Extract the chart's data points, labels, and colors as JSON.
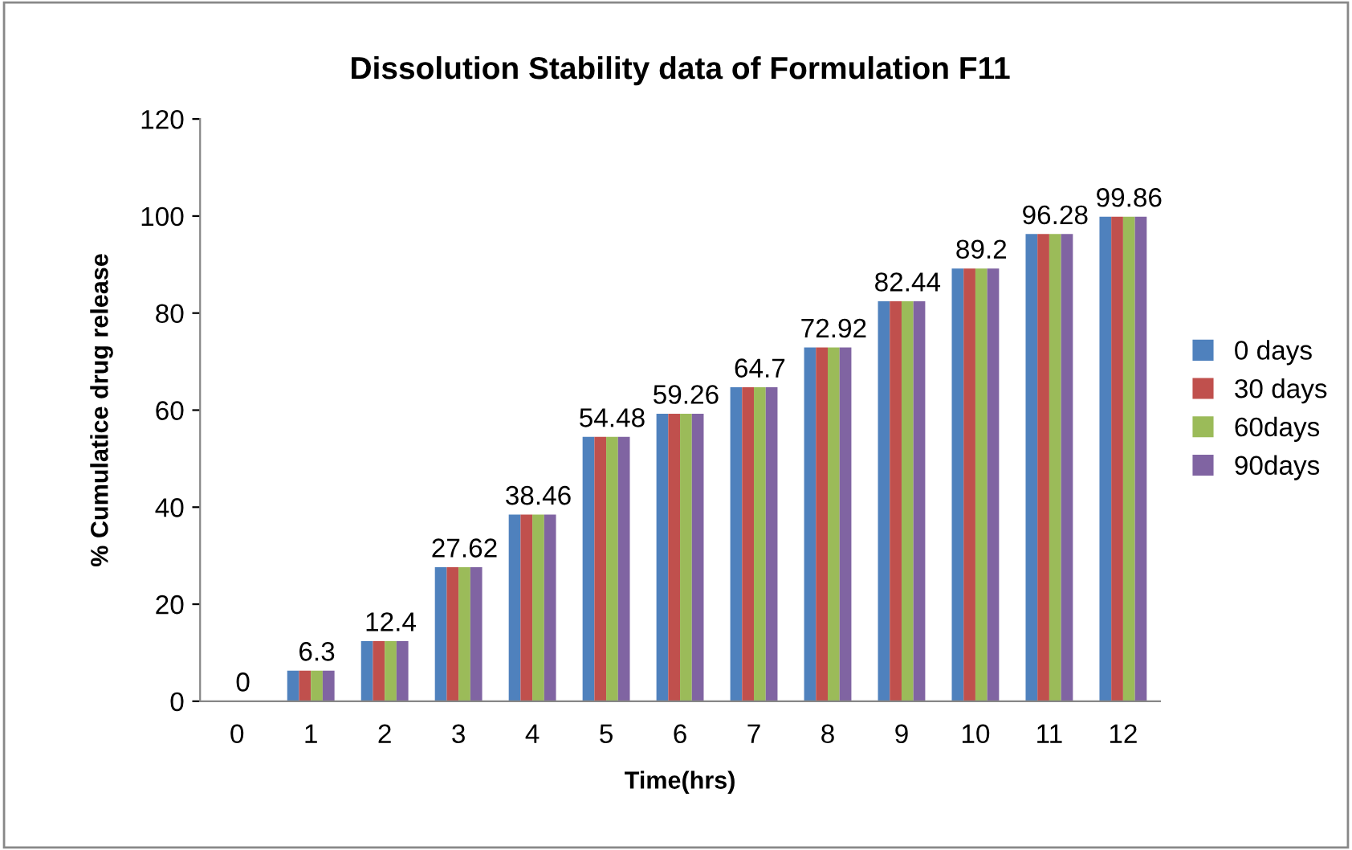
{
  "chart_data": {
    "type": "bar",
    "title": "Dissolution Stability data of Formulation F11",
    "xlabel": "Time(hrs)",
    "ylabel": "% Cumulatice drug release",
    "categories": [
      "0",
      "1",
      "2",
      "3",
      "4",
      "5",
      "6",
      "7",
      "8",
      "9",
      "10",
      "11",
      "12"
    ],
    "series": [
      {
        "name": "0 days",
        "color": "#4f81bd",
        "values": [
          0,
          6.3,
          12.4,
          27.62,
          38.46,
          54.48,
          59.26,
          64.7,
          72.92,
          82.44,
          89.2,
          96.28,
          99.86
        ]
      },
      {
        "name": "30 days",
        "color": "#c0504d",
        "values": [
          0,
          6.3,
          12.4,
          27.62,
          38.46,
          54.48,
          59.26,
          64.7,
          72.92,
          82.44,
          89.2,
          96.28,
          99.86
        ]
      },
      {
        "name": "60days",
        "color": "#9bbb59",
        "values": [
          0,
          6.3,
          12.4,
          27.62,
          38.46,
          54.48,
          59.26,
          64.7,
          72.92,
          82.44,
          89.2,
          96.28,
          99.86
        ],
        "value_labels": [
          "0",
          "6.3",
          "12.4",
          "27.62",
          "38.46",
          "54.48",
          "59.26",
          "64.7",
          "72.92",
          "82.44",
          "89.2",
          "96.28",
          "99.86"
        ]
      },
      {
        "name": "90days",
        "color": "#8064a2",
        "values": [
          0,
          6.3,
          12.4,
          27.62,
          38.46,
          54.48,
          59.26,
          64.7,
          72.92,
          82.44,
          89.2,
          96.28,
          99.86
        ]
      }
    ],
    "ylim": [
      0,
      120
    ],
    "yticks": [
      0,
      20,
      40,
      60,
      80,
      100,
      120
    ],
    "grid": false,
    "legend": "right"
  }
}
